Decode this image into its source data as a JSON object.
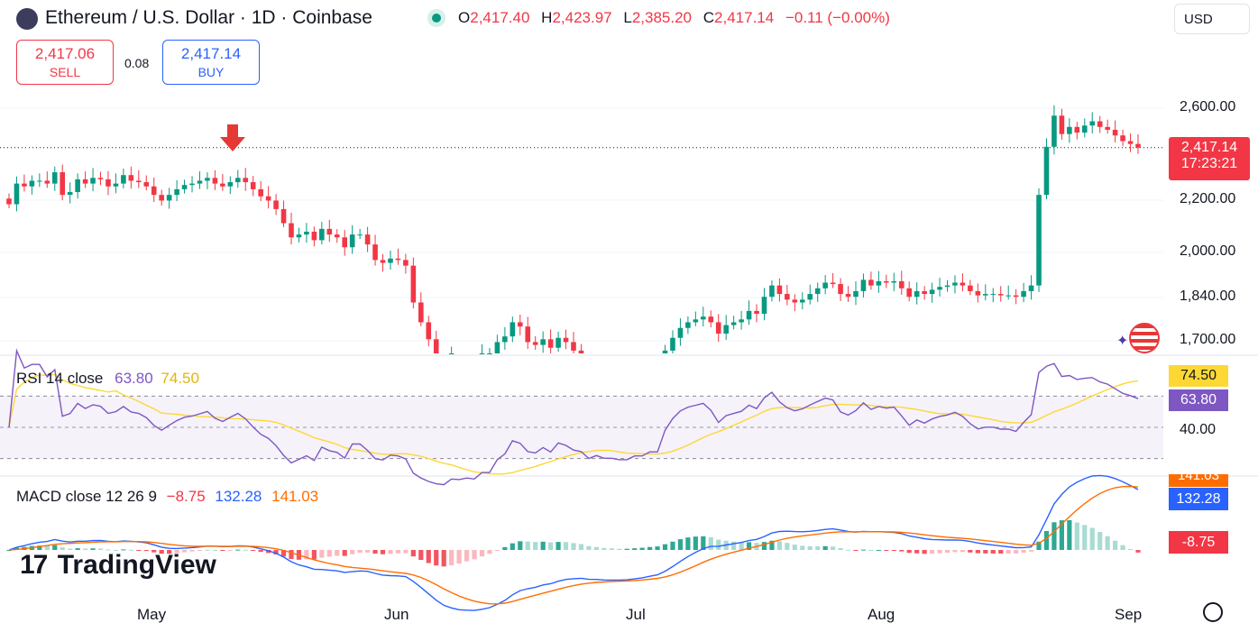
{
  "header": {
    "title": "Ethereum / U.S. Dollar · 1D · Coinbase",
    "ohlc": [
      {
        "key": "O",
        "value": "2,417.40"
      },
      {
        "key": "H",
        "value": "2,423.97"
      },
      {
        "key": "L",
        "value": "2,385.20"
      },
      {
        "key": "C",
        "value": "2,417.14"
      }
    ],
    "change": "−0.11 (−0.00%)",
    "currency": "USD"
  },
  "trade": {
    "sell_price": "2,417.06",
    "sell_label": "SELL",
    "spread": "0.08",
    "buy_price": "2,417.14",
    "buy_label": "BUY"
  },
  "price_axis": {
    "labels": [
      "2,600.00",
      "2,200.00",
      "2,000.00",
      "1,840.00",
      "1,700.00"
    ],
    "last_price": "2,417.14",
    "countdown": "17:23:21"
  },
  "rsi": {
    "label": "RSI 14 close",
    "value": "63.80",
    "ma_value": "74.50",
    "axis_label": "40.00"
  },
  "macd": {
    "label": "MACD close 12 26 9",
    "hist": "−8.75",
    "macd": "132.28",
    "signal": "141.03",
    "tag_signal": "141.03",
    "tag_macd": "132.28",
    "tag_hist": "-8.75"
  },
  "time_axis": [
    "May",
    "Jun",
    "Jul",
    "Aug",
    "Sep"
  ],
  "brand": "TradingView",
  "colors": {
    "up": "#089981",
    "down": "#f23645",
    "rsi": "#7e57c2",
    "rsi_ma": "#fdd835",
    "macd": "#2962ff",
    "signal": "#ff6d00",
    "accent": "#2962ff"
  },
  "chart_data": {
    "type": "candlestick",
    "symbol": "ETH/USD",
    "interval": "1D",
    "closes": [
      2217,
      2290,
      2280,
      2300,
      2300,
      2290,
      2330,
      2250,
      2260,
      2305,
      2290,
      2310,
      2305,
      2280,
      2290,
      2320,
      2300,
      2295,
      2280,
      2250,
      2230,
      2250,
      2270,
      2285,
      2290,
      2300,
      2310,
      2290,
      2280,
      2295,
      2310,
      2295,
      2270,
      2245,
      2230,
      2200,
      2150,
      2100,
      2110,
      2120,
      2090,
      2130,
      2110,
      2100,
      2065,
      2110,
      2110,
      2075,
      2020,
      2010,
      2025,
      2020,
      2000,
      1870,
      1800,
      1740,
      1690,
      1670,
      1690,
      1680,
      1685,
      1670,
      1690,
      1690,
      1730,
      1750,
      1800,
      1785,
      1730,
      1720,
      1740,
      1710,
      1745,
      1730,
      1700,
      1690,
      1640,
      1650,
      1630,
      1630,
      1620,
      1620,
      1630,
      1630,
      1640,
      1640,
      1700,
      1745,
      1780,
      1800,
      1810,
      1820,
      1800,
      1760,
      1790,
      1800,
      1810,
      1840,
      1830,
      1890,
      1930,
      1900,
      1880,
      1870,
      1880,
      1900,
      1920,
      1940,
      1935,
      1900,
      1890,
      1910,
      1950,
      1930,
      1945,
      1940,
      1945,
      1920,
      1890,
      1910,
      1900,
      1915,
      1925,
      1930,
      1940,
      1930,
      1910,
      1895,
      1900,
      1900,
      1895,
      1895,
      1890,
      1910,
      1930,
      2250,
      2420,
      2530,
      2465,
      2490,
      2470,
      2495,
      2510,
      2490,
      2480,
      2460,
      2440,
      2430,
      2417
    ],
    "ylim": [
      1690,
      2620
    ],
    "rsi_ylim": [
      20,
      95
    ],
    "macd_ylim": [
      -100,
      160
    ]
  }
}
